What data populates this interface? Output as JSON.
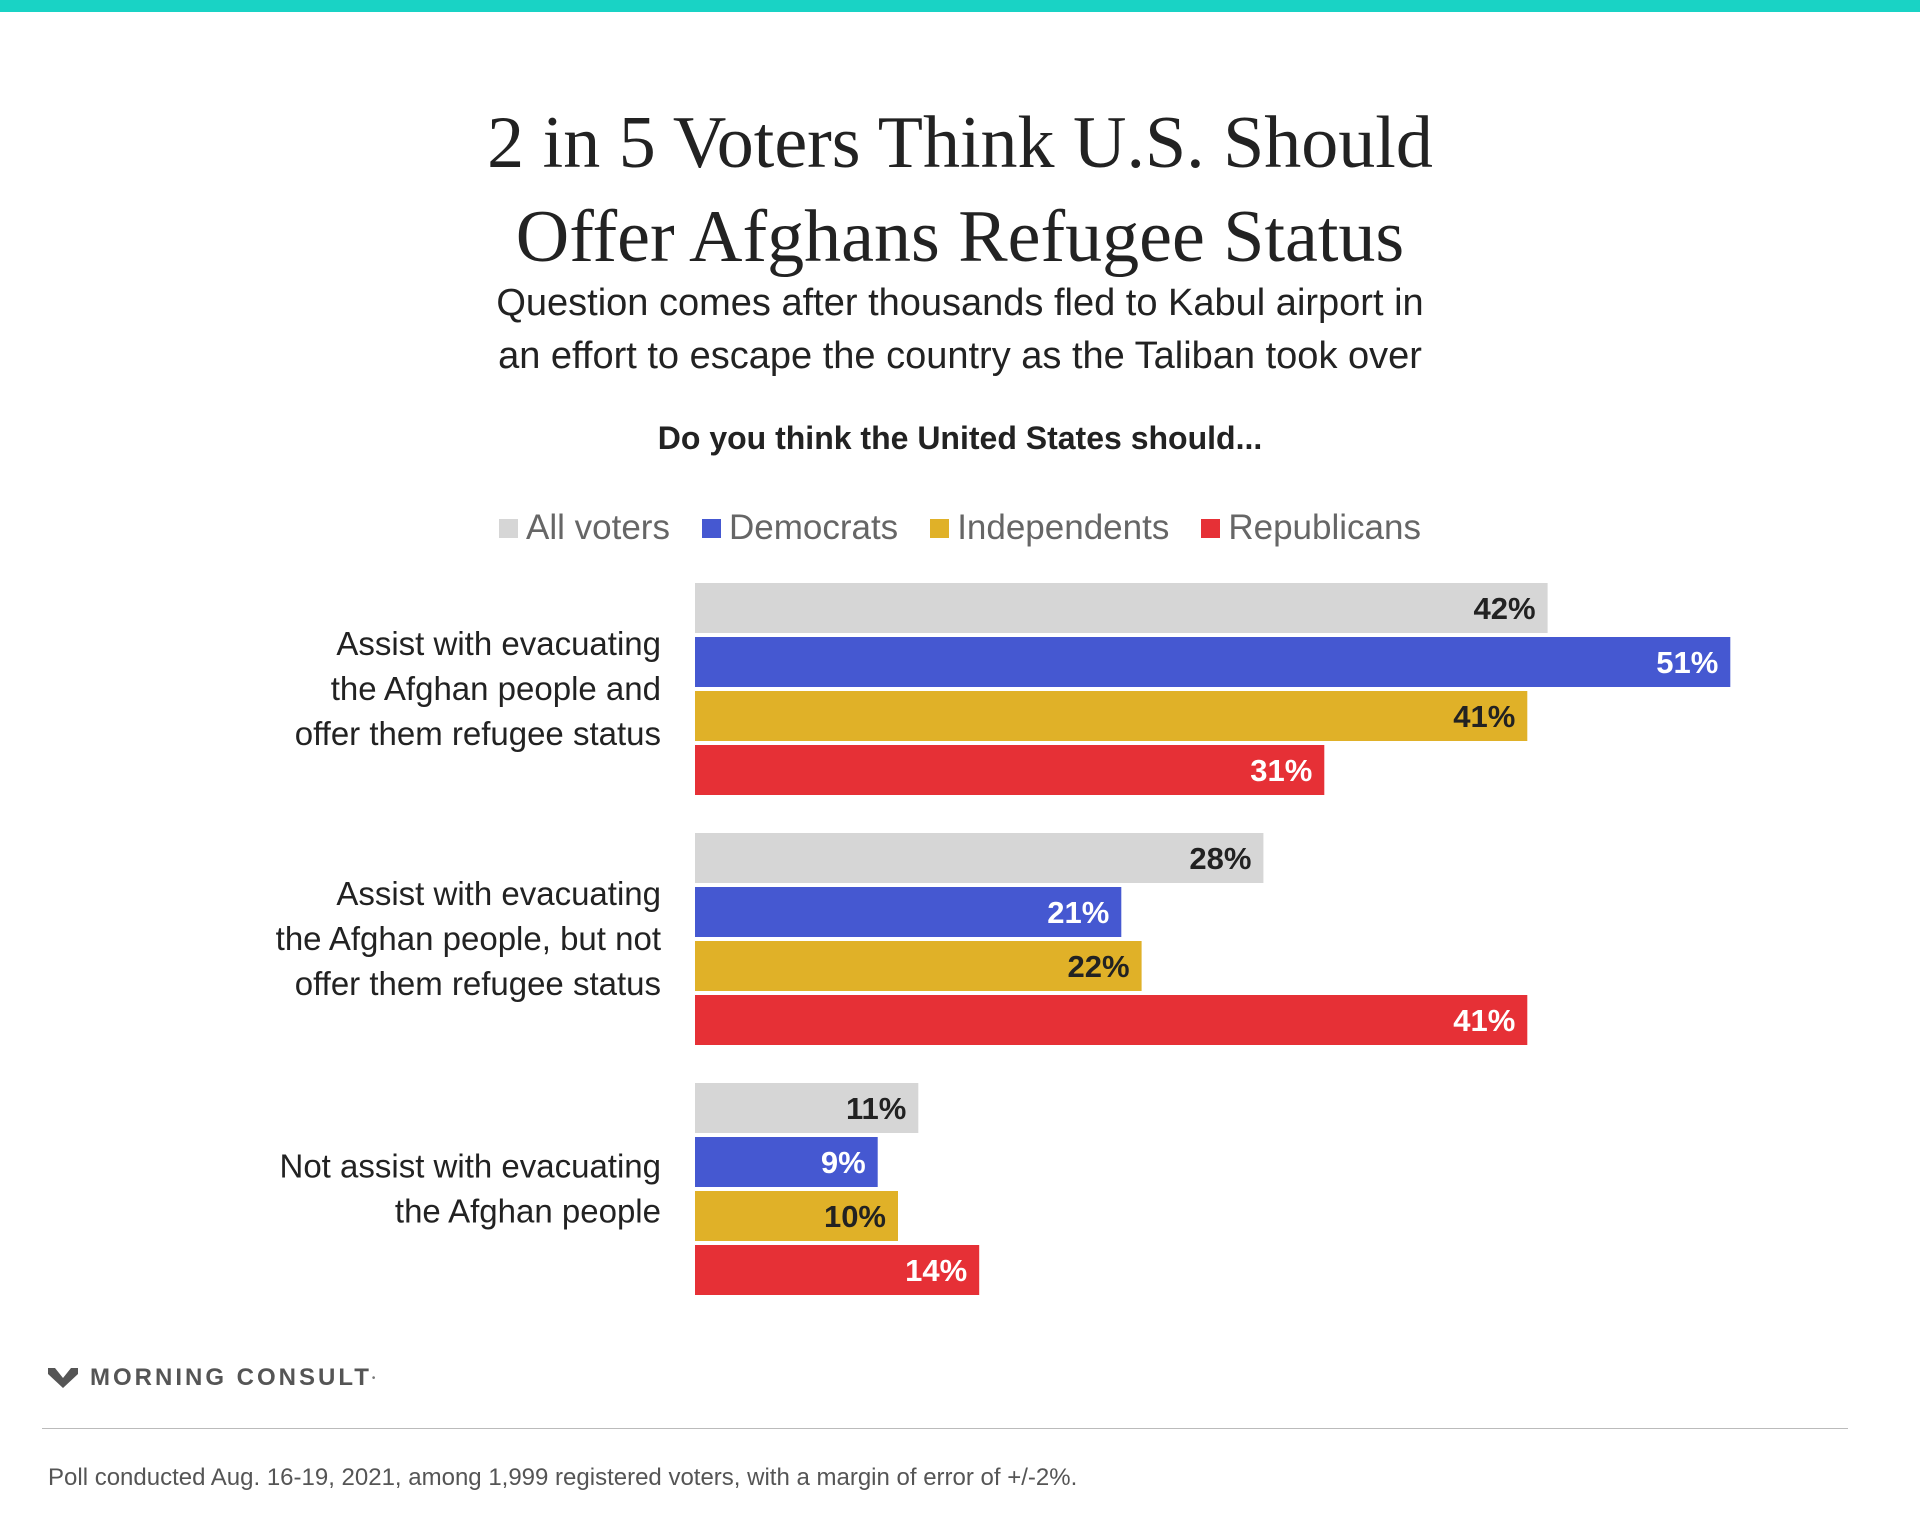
{
  "header": {
    "title_lines": [
      "2 in 5 Voters Think U.S. Should",
      "Offer Afghans Refugee Status"
    ],
    "subtitle_lines": [
      "Question comes after thousands fled to Kabul airport in",
      "an effort to escape the country as the Taliban took over"
    ],
    "question": "Do you think the United States should..."
  },
  "legend": [
    {
      "label": "All voters",
      "color": "#d6d6d6"
    },
    {
      "label": "Democrats",
      "color": "#4558d1"
    },
    {
      "label": "Independents",
      "color": "#e0b128"
    },
    {
      "label": "Republicans",
      "color": "#e63036"
    }
  ],
  "chart_data": {
    "type": "bar",
    "orientation": "horizontal",
    "categories": [
      [
        "Assist with evacuating",
        "the Afghan people and",
        "offer them refugee status"
      ],
      [
        "Assist with evacuating",
        "the Afghan people, but not",
        "offer them refugee status"
      ],
      [
        "Not assist with evacuating",
        "the Afghan people"
      ]
    ],
    "series": [
      {
        "name": "All voters",
        "color": "#d6d6d6",
        "label_color": "#222222",
        "values": [
          42,
          28,
          11
        ]
      },
      {
        "name": "Democrats",
        "color": "#4558d1",
        "label_color": "#ffffff",
        "values": [
          51,
          21,
          9
        ]
      },
      {
        "name": "Independents",
        "color": "#e0b128",
        "label_color": "#222222",
        "values": [
          41,
          22,
          10
        ]
      },
      {
        "name": "Republicans",
        "color": "#e63036",
        "label_color": "#ffffff",
        "values": [
          31,
          41,
          14
        ]
      }
    ],
    "value_suffix": "%",
    "xlim": [
      0,
      51
    ],
    "grid": false,
    "legend_position": "top-center"
  },
  "footer": {
    "brand": "MORNING CONSULT",
    "note": "Poll conducted Aug. 16-19, 2021, among 1,999 registered voters, with a margin of error of +/-2%."
  }
}
